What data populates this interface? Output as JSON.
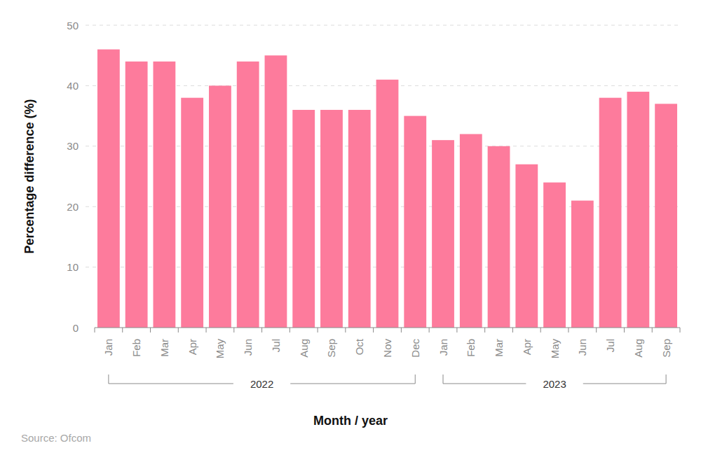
{
  "chart_data": {
    "type": "bar",
    "y_label": "Percentage difference (%)",
    "x_label": "Month / year",
    "source": "Source: Ofcom",
    "categories": [
      "Jan",
      "Feb",
      "Mar",
      "Apr",
      "May",
      "Jun",
      "Jul",
      "Aug",
      "Sep",
      "Oct",
      "Nov",
      "Dec",
      "Jan",
      "Feb",
      "Mar",
      "Apr",
      "May",
      "Jun",
      "Jul",
      "Aug",
      "Sep"
    ],
    "values": [
      46,
      44,
      44,
      38,
      40,
      44,
      45,
      36,
      36,
      36,
      41,
      35,
      31,
      32,
      30,
      27,
      24,
      21,
      38,
      39,
      37
    ],
    "category_groups": [
      {
        "label": "2022",
        "count": 12
      },
      {
        "label": "2023",
        "count": 9
      }
    ],
    "color": "#fd7b9c",
    "ylim": [
      0,
      50
    ],
    "yticks": [
      0,
      10,
      20,
      30,
      40,
      50
    ],
    "grid": true
  }
}
